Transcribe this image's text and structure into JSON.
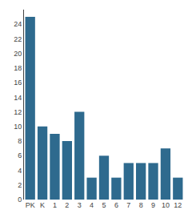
{
  "chart_data": {
    "type": "bar",
    "categories": [
      "PK",
      "K",
      "1",
      "2",
      "3",
      "4",
      "5",
      "6",
      "7",
      "8",
      "9",
      "10",
      "12"
    ],
    "values": [
      25,
      10,
      9,
      8,
      12,
      3,
      6,
      3,
      5,
      5,
      5,
      7,
      3
    ],
    "color": "#2e6a8e",
    "ylim": [
      0,
      26
    ],
    "yticks": [
      0,
      2,
      4,
      6,
      8,
      10,
      12,
      14,
      16,
      18,
      20,
      22,
      24
    ],
    "grid": false
  }
}
